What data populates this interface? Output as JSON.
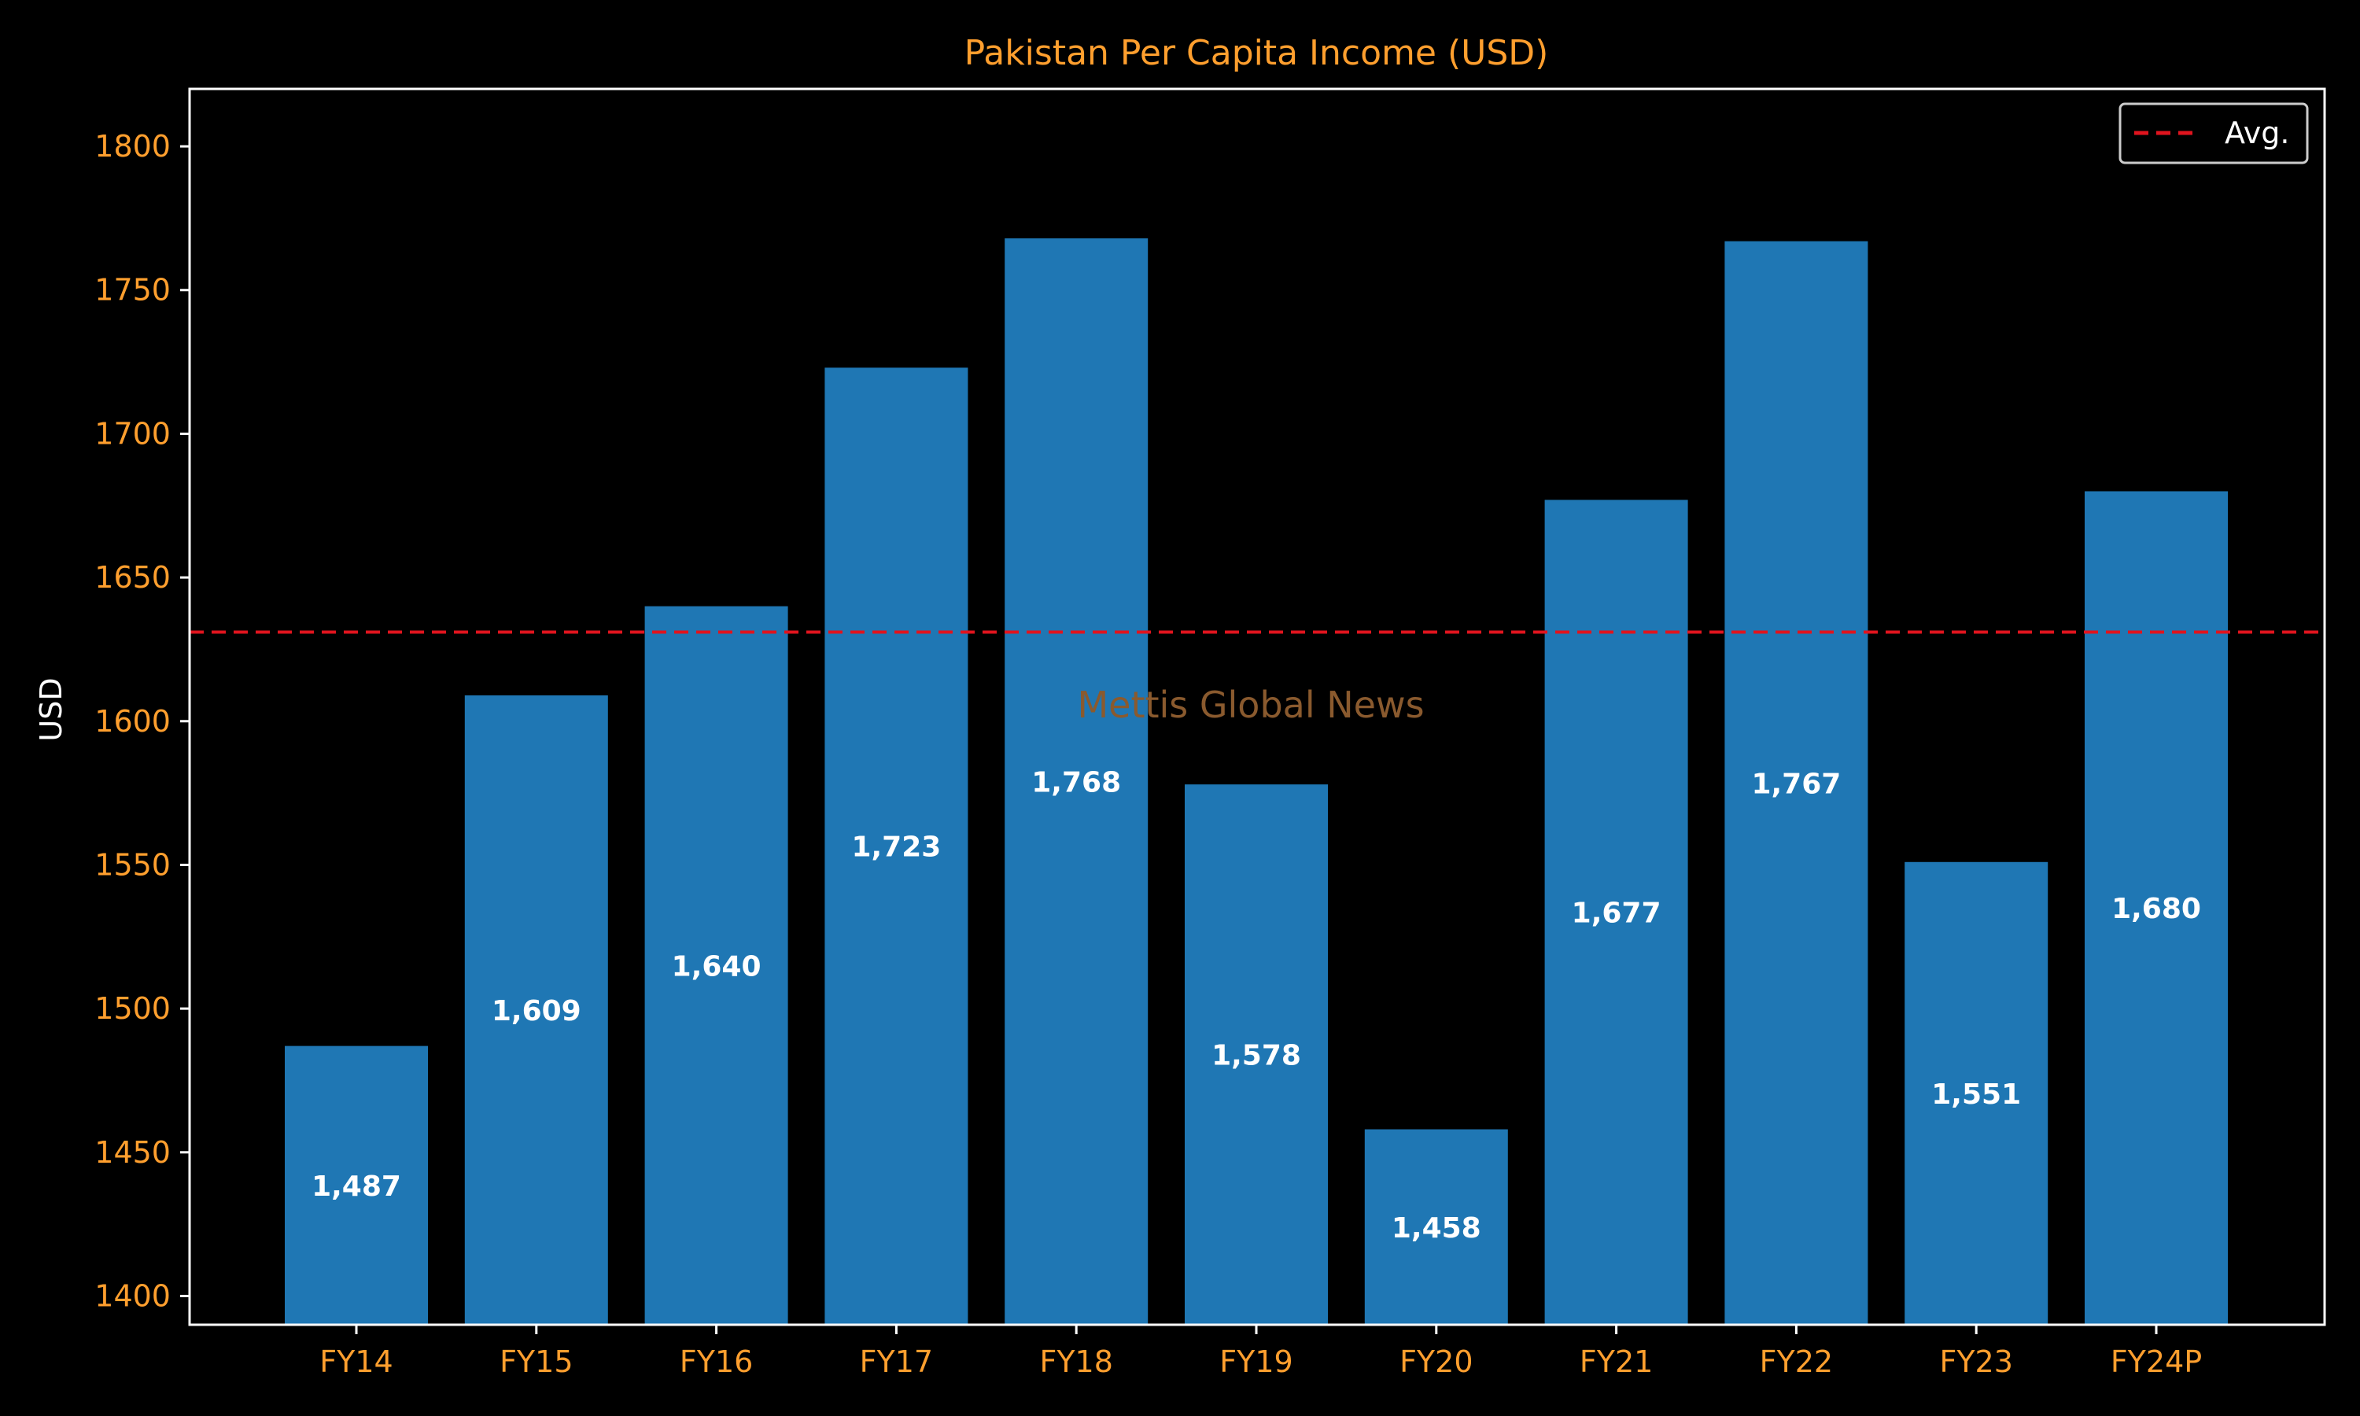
{
  "chart_data": {
    "type": "bar",
    "title": "Pakistan Per Capita Income (USD)",
    "xlabel": "",
    "ylabel": "USD",
    "categories": [
      "FY14",
      "FY15",
      "FY16",
      "FY17",
      "FY18",
      "FY19",
      "FY20",
      "FY21",
      "FY22",
      "FY23",
      "FY24P"
    ],
    "values": [
      1487,
      1609,
      1640,
      1723,
      1768,
      1578,
      1458,
      1677,
      1767,
      1551,
      1680
    ],
    "value_labels": [
      "1,487",
      "1,609",
      "1,640",
      "1,723",
      "1,768",
      "1,578",
      "1,458",
      "1,677",
      "1,767",
      "1,551",
      "1,680"
    ],
    "ylim": [
      1390,
      1820
    ],
    "yticks": [
      1400,
      1450,
      1500,
      1550,
      1600,
      1650,
      1700,
      1750,
      1800
    ],
    "average": 1631,
    "legend": {
      "label": "Avg.",
      "placement": "top-right"
    },
    "watermark": "Mettis Global News",
    "grid": false
  },
  "colors": {
    "background": "#000000",
    "bar": "#1f77b4",
    "avg_line": "#e0141e",
    "title": "#ff9f2e",
    "tick_label": "#ff9f2e",
    "axis_label": "#ffffff",
    "value_label": "#ffffff",
    "frame": "#ffffff",
    "watermark": "#8a5a2e"
  }
}
